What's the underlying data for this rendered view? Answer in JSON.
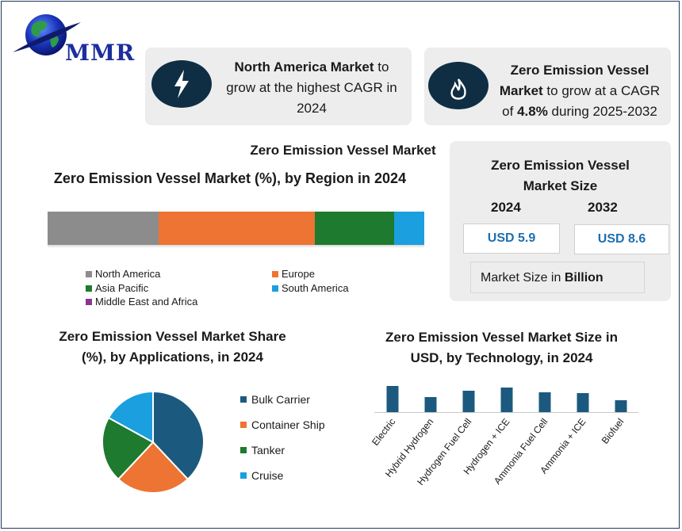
{
  "logo": {
    "text": "MMR"
  },
  "info_left": {
    "bold": "North America Market",
    "rest": " to grow at the highest CAGR in 2024",
    "icon": "lightning-icon"
  },
  "info_right": {
    "bold1": "Zero Emission Vessel Market",
    "mid": " to grow at a CAGR of ",
    "bold2": "4.8%",
    "rest": " during 2025-2032",
    "icon": "flame-icon"
  },
  "market_title": "Zero Emission Vessel Market",
  "size_box": {
    "title": "Zero Emission Vessel Market Size",
    "year1": "2024",
    "year2": "2032",
    "value1": "USD 5.9",
    "value2": "USD 8.6",
    "unit_prefix": "Market Size in ",
    "unit_bold": "Billion"
  },
  "chart_data": [
    {
      "type": "bar",
      "orientation": "horizontal-stacked-100",
      "title": "Zero Emission Vessel Market  (%), by Region in 2024",
      "categories": [
        "North America",
        "Europe",
        "Asia Pacific",
        "South America",
        "Middle East and Africa"
      ],
      "values": [
        29.5,
        41.5,
        21,
        8,
        0
      ],
      "colors": [
        "#8c8c8c",
        "#ed7433",
        "#1e7a2e",
        "#1b9fdf",
        "#8e3594"
      ],
      "legend": "bottom"
    },
    {
      "type": "pie",
      "title": "Zero Emission Vessel Market Share (%), by Applications, in 2024",
      "categories": [
        "Bulk Carrier",
        "Container Ship",
        "Tanker",
        "Cruise"
      ],
      "values": [
        38,
        24,
        21,
        17
      ],
      "colors": [
        "#1b5a7e",
        "#ed7433",
        "#1e7a2e",
        "#1b9fdf"
      ],
      "legend": "right"
    },
    {
      "type": "bar",
      "title": "Zero Emission Vessel Market Size in USD, by Technology, in 2024",
      "categories": [
        "Electric",
        "Hybrid Hydrogen",
        "Hydrogen Fuel Cell",
        "Hydrogen + ICE",
        "Ammonia Fuel Cell",
        "Ammonia + ICE",
        "Biofuel"
      ],
      "values": [
        33,
        19,
        27,
        31,
        25,
        24,
        15
      ],
      "color": "#1b5a7e",
      "ylim": [
        0,
        40
      ]
    }
  ]
}
